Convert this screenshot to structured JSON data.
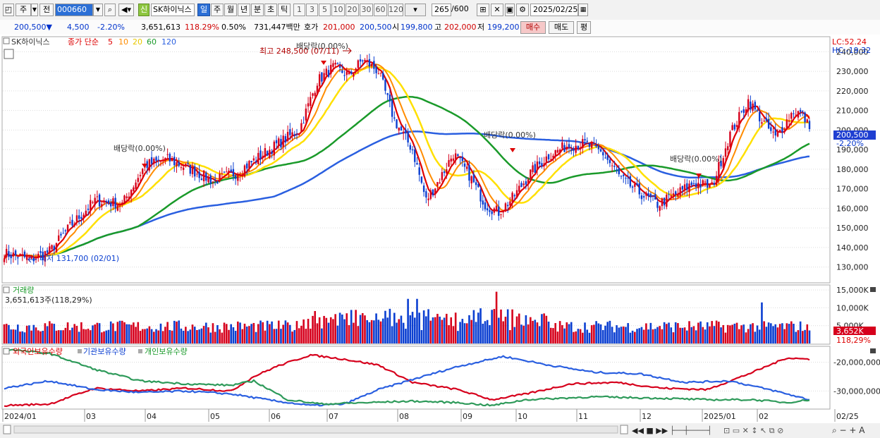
{
  "toolbar": {
    "mode_1": "주",
    "mode_2": "전",
    "code": "000660",
    "flag": "신",
    "stock_name": "SK하이닉스",
    "periods": [
      "일",
      "주",
      "월",
      "년",
      "분",
      "초",
      "틱"
    ],
    "active_period": "일",
    "intervals": [
      "1",
      "3",
      "5",
      "10",
      "20",
      "30",
      "60",
      "120"
    ],
    "count": "265",
    "count_total": "/600",
    "date": "2025/02/25"
  },
  "quote": {
    "price": "200,500▼",
    "change": "4,500",
    "change_pct": "-2.20%",
    "volume": "3,651,613",
    "volume_ratio": "118.29%",
    "turnover": "0.50%",
    "amount": "731,447백만",
    "bid_label": "호가",
    "bid": "201,000",
    "ask": "200,500",
    "open_label": "시",
    "open": "199,800",
    "high_label": "고",
    "high": "202,000",
    "low_label": "저",
    "low": "199,200",
    "buy": "매수",
    "sell": "매도",
    "eval": "평"
  },
  "colors": {
    "up": "#d6001c",
    "down": "#0b3fd1",
    "ma5": "#e00000",
    "ma10": "#ff8c00",
    "ma20": "#ffe000",
    "ma60": "#1a9a2a",
    "ma120": "#2a5fe0"
  },
  "price_panel": {
    "title": "SK하이닉스",
    "legend_price": "종가 단순",
    "ma_labels": [
      "5",
      "10",
      "20",
      "60",
      "120"
    ],
    "lc": "LC:52.24",
    "hc": "HC:-19.32",
    "current_price": "200,500",
    "current_change": "-2.20%",
    "annotations": {
      "high": "최고 248,500 (07/11)",
      "low": "최저 131,700 (02/01)",
      "div1": "배당락(0.00%)",
      "div2": "배당락(0.00%)",
      "div3": "배당락(0.00%)",
      "div4": "배당락(0.00%)"
    }
  },
  "volume_panel": {
    "title": "거래량",
    "value": "3,651,613주(118,29%)",
    "current_volume": "3,652K",
    "current_ratio": "118,29%"
  },
  "holdings_panel": {
    "legend": [
      "외국인보유수량",
      "기관보유수량",
      "개인보유수량"
    ]
  },
  "chart_data": [
    {
      "type": "candlestick",
      "title": "SK하이닉스",
      "y_ticks": [
        "240,000",
        "230,000",
        "220,000",
        "210,000",
        "200,000",
        "190,000",
        "180,000",
        "170,000",
        "160,000",
        "150,000",
        "140,000",
        "130,000"
      ],
      "ylim": [
        123000,
        247000
      ],
      "x_ticks": [
        "2024/01",
        "03",
        "04",
        "05",
        "06",
        "07",
        "08",
        "09",
        "10",
        "11",
        "12",
        "2025/01",
        "02",
        "02/25"
      ],
      "series": [
        {
          "name": "종가",
          "close_anchors": [
            [
              0,
              137000
            ],
            [
              12,
              134000
            ],
            [
              20,
              138000
            ],
            [
              30,
              152000
            ],
            [
              40,
              164000
            ],
            [
              52,
              162000
            ],
            [
              62,
              182000
            ],
            [
              72,
              185000
            ],
            [
              82,
              180000
            ],
            [
              92,
              174000
            ],
            [
              102,
              178000
            ],
            [
              112,
              186000
            ],
            [
              122,
              194000
            ],
            [
              130,
              200000
            ],
            [
              138,
              225000
            ],
            [
              145,
              232000
            ],
            [
              152,
              228000
            ],
            [
              158,
              236000
            ],
            [
              165,
              230000
            ],
            [
              172,
              205000
            ],
            [
              180,
              190000
            ],
            [
              186,
              164000
            ],
            [
              192,
              175000
            ],
            [
              198,
              188000
            ],
            [
              205,
              177000
            ],
            [
              212,
              162000
            ],
            [
              218,
              158000
            ],
            [
              224,
              165000
            ],
            [
              232,
              178000
            ],
            [
              240,
              187000
            ],
            [
              248,
              192000
            ],
            [
              256,
              193000
            ],
            [
              264,
              188000
            ],
            [
              272,
              175000
            ],
            [
              280,
              168000
            ],
            [
              288,
              162000
            ],
            [
              296,
              167000
            ],
            [
              304,
              173000
            ],
            [
              312,
              171000
            ],
            [
              320,
              198000
            ],
            [
              328,
              215000
            ],
            [
              334,
              205000
            ],
            [
              340,
              196000
            ],
            [
              348,
              210000
            ],
            [
              352,
              208000
            ],
            [
              355,
              200500
            ]
          ]
        }
      ]
    },
    {
      "type": "bar",
      "title": "거래량",
      "y_ticks": [
        "15,000K",
        "10,000K",
        "5,000K"
      ],
      "ylim": [
        0,
        16000
      ]
    },
    {
      "type": "line",
      "title": "",
      "y_ticks": [
        "-20,000,000",
        "-30,000,000"
      ],
      "ylim": [
        -36000000,
        -15000000
      ],
      "series": [
        {
          "name": "외국인보유수량",
          "anchors": [
            [
              0,
              -35000000
            ],
            [
              20,
              -34500000
            ],
            [
              40,
              -29000000
            ],
            [
              60,
              -30000000
            ],
            [
              80,
              -29000000
            ],
            [
              100,
              -30000000
            ],
            [
              110,
              -25000000
            ],
            [
              120,
              -21500000
            ],
            [
              135,
              -17500000
            ],
            [
              150,
              -19000000
            ],
            [
              165,
              -21000000
            ],
            [
              180,
              -27000000
            ],
            [
              200,
              -29500000
            ],
            [
              215,
              -33000000
            ],
            [
              230,
              -31000000
            ],
            [
              250,
              -27500000
            ],
            [
              270,
              -27000000
            ],
            [
              290,
              -29000000
            ],
            [
              310,
              -29500000
            ],
            [
              330,
              -23500000
            ],
            [
              345,
              -18500000
            ],
            [
              355,
              -19000000
            ]
          ]
        },
        {
          "name": "기관보유수량",
          "anchors": [
            [
              0,
              -29000000
            ],
            [
              20,
              -26500000
            ],
            [
              40,
              -29500000
            ],
            [
              60,
              -30500000
            ],
            [
              80,
              -30000000
            ],
            [
              100,
              -31000000
            ],
            [
              120,
              -33500000
            ],
            [
              135,
              -35000000
            ],
            [
              150,
              -34500000
            ],
            [
              165,
              -29500000
            ],
            [
              180,
              -26000000
            ],
            [
              200,
              -21500000
            ],
            [
              220,
              -18000000
            ],
            [
              240,
              -21000000
            ],
            [
              260,
              -23500000
            ],
            [
              280,
              -24000000
            ],
            [
              300,
              -27000000
            ],
            [
              320,
              -26500000
            ],
            [
              340,
              -30000000
            ],
            [
              355,
              -33000000
            ]
          ]
        },
        {
          "name": "개인보유수량",
          "anchors": [
            [
              0,
              -15500000
            ],
            [
              20,
              -17000000
            ],
            [
              40,
              -22500000
            ],
            [
              60,
              -26500000
            ],
            [
              80,
              -27500000
            ],
            [
              100,
              -28000000
            ],
            [
              110,
              -26500000
            ],
            [
              125,
              -33000000
            ],
            [
              140,
              -34500000
            ],
            [
              160,
              -34000000
            ],
            [
              180,
              -33500000
            ],
            [
              200,
              -34000000
            ],
            [
              215,
              -35000000
            ],
            [
              230,
              -33000000
            ],
            [
              260,
              -32000000
            ],
            [
              290,
              -32500000
            ],
            [
              310,
              -33000000
            ],
            [
              330,
              -33000000
            ],
            [
              345,
              -34000000
            ],
            [
              355,
              -33000000
            ]
          ]
        }
      ]
    }
  ]
}
